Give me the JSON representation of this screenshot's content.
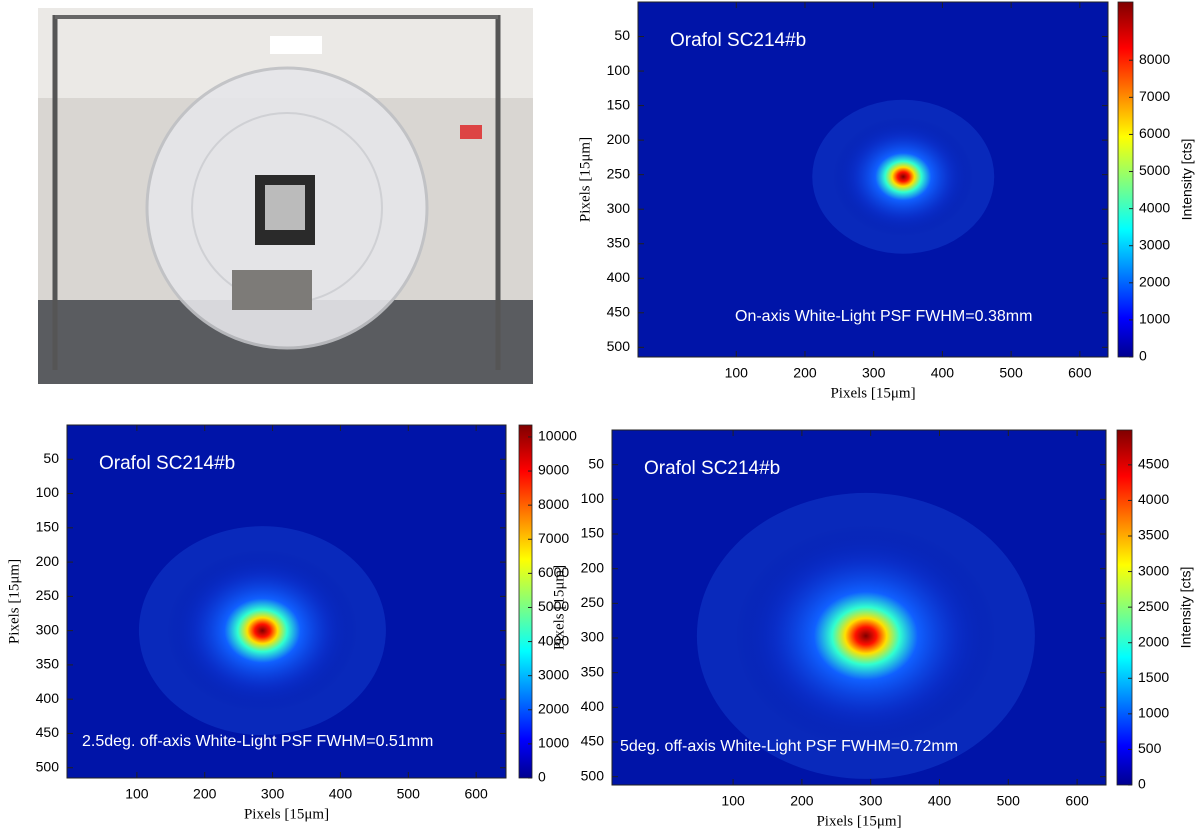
{
  "chart_data": [
    {
      "type": "heatmap",
      "title": "Orafol SC214#b",
      "annotation": "On-axis White-Light PSF FWHM=0.38mm",
      "xlabel": "Pixels [15μm]",
      "ylabel": "Pixels [15μm]",
      "colorbar_label": "Intensity [cts]",
      "xlim": [
        -43,
        641
      ],
      "ylim": [
        0,
        514
      ],
      "y_inverted": true,
      "xticks": [
        100,
        200,
        300,
        400,
        500,
        600
      ],
      "yticks": [
        50,
        100,
        150,
        200,
        250,
        300,
        350,
        400,
        450,
        500
      ],
      "clim": [
        0,
        9570
      ],
      "cticks": [
        0,
        1000,
        2000,
        3000,
        4000,
        5000,
        6000,
        7000,
        8000
      ],
      "colormap": "jet",
      "spot": {
        "x": 343,
        "y": 253
      }
    },
    {
      "type": "heatmap",
      "title": "Orafol SC214#b",
      "annotation": "2.5deg. off-axis White-Light PSF FWHM=0.51mm",
      "xlabel": "Pixels [15μm]",
      "ylabel": "Pixels [15μm]",
      "xlim": [
        -3,
        644
      ],
      "ylim": [
        0,
        515
      ],
      "y_inverted": true,
      "xticks": [
        100,
        200,
        300,
        400,
        500,
        600
      ],
      "yticks": [
        50,
        100,
        150,
        200,
        250,
        300,
        350,
        400,
        450,
        500
      ],
      "clim": [
        0,
        10350
      ],
      "cticks": [
        0,
        1000,
        2000,
        3000,
        4000,
        5000,
        6000,
        7000,
        8000,
        9000,
        10000
      ],
      "colormap": "jet",
      "spot": {
        "x": 285,
        "y": 300
      }
    },
    {
      "type": "heatmap",
      "title": "Orafol SC214#b",
      "annotation": "5deg. off-axis White-Light PSF FWHM=0.72mm",
      "xlabel": "Pixels [15μm]",
      "ylabel": "Pixels [15μm]",
      "colorbar_label": "Intensity [cts]",
      "xlim": [
        -76,
        642
      ],
      "ylim": [
        0,
        512
      ],
      "y_inverted": true,
      "xticks": [
        100,
        200,
        300,
        400,
        500,
        600
      ],
      "yticks": [
        50,
        100,
        150,
        200,
        250,
        300,
        350,
        400,
        450,
        500
      ],
      "clim": [
        0,
        4990
      ],
      "cticks": [
        0,
        500,
        1000,
        1500,
        2000,
        2500,
        3000,
        3500,
        4000,
        4500
      ],
      "colormap": "jet",
      "spot": {
        "x": 293,
        "y": 297
      }
    }
  ]
}
